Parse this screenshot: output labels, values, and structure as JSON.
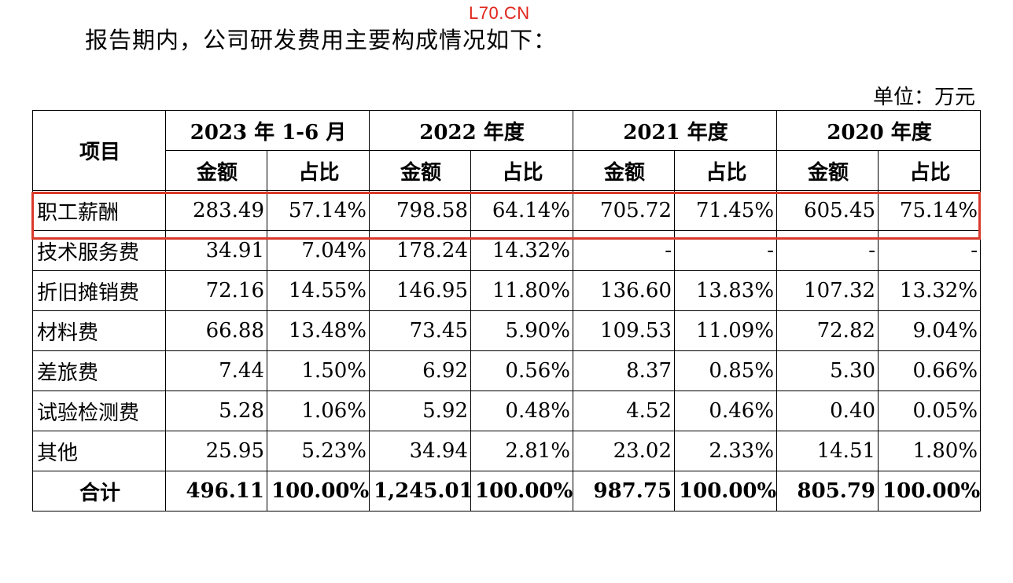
{
  "watermark": "L70.CN",
  "intro": "报告期内，公司研发费用主要构成情况如下：",
  "unit": "单位：万元",
  "colors": {
    "highlight": "#d93a2b",
    "watermark": "#e0241b"
  },
  "table": {
    "row_header": "项目",
    "periods": [
      "2023 年 1-6 月",
      "2022 年度",
      "2021 年度",
      "2020 年度"
    ],
    "subheaders": [
      "金额",
      "占比"
    ],
    "rows": [
      {
        "label": "职工薪酬",
        "cells": [
          "283.49",
          "57.14%",
          "798.58",
          "64.14%",
          "705.72",
          "71.45%",
          "605.45",
          "75.14%"
        ]
      },
      {
        "label": "技术服务费",
        "cells": [
          "34.91",
          "7.04%",
          "178.24",
          "14.32%",
          "-",
          "-",
          "-",
          "-"
        ]
      },
      {
        "label": "折旧摊销费",
        "cells": [
          "72.16",
          "14.55%",
          "146.95",
          "11.80%",
          "136.60",
          "13.83%",
          "107.32",
          "13.32%"
        ]
      },
      {
        "label": "材料费",
        "cells": [
          "66.88",
          "13.48%",
          "73.45",
          "5.90%",
          "109.53",
          "11.09%",
          "72.82",
          "9.04%"
        ]
      },
      {
        "label": "差旅费",
        "cells": [
          "7.44",
          "1.50%",
          "6.92",
          "0.56%",
          "8.37",
          "0.85%",
          "5.30",
          "0.66%"
        ]
      },
      {
        "label": "试验检测费",
        "cells": [
          "5.28",
          "1.06%",
          "5.92",
          "0.48%",
          "4.52",
          "0.46%",
          "0.40",
          "0.05%"
        ]
      },
      {
        "label": "其他",
        "cells": [
          "25.95",
          "5.23%",
          "34.94",
          "2.81%",
          "23.02",
          "2.33%",
          "14.51",
          "1.80%"
        ]
      }
    ],
    "total": {
      "label": "合计",
      "cells": [
        "496.11",
        "100.00%",
        "1,245.01",
        "100.00%",
        "987.75",
        "100.00%",
        "805.79",
        "100.00%"
      ]
    }
  }
}
